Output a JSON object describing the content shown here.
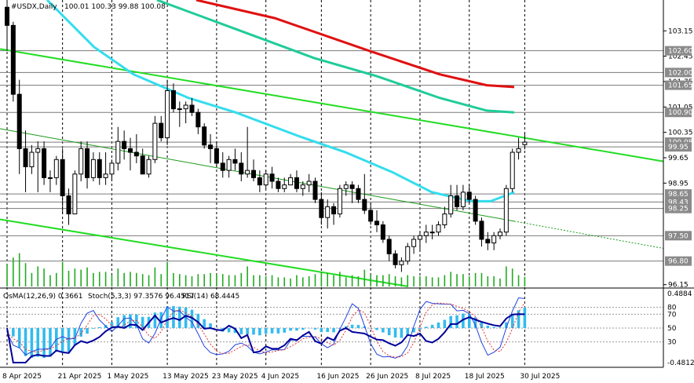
{
  "header": {
    "symbol": "#USDX,Daily",
    "ohlc": "100.01 100.33 99.88 100.08"
  },
  "subwindow": {
    "osma_label": "OsMA(12,26,9) 0.3661",
    "stoch_label": "Stoch(5,3,3) 97.3576 96.4517",
    "rsi_label": "RSI(14) 68.4445"
  },
  "chart_data": [
    {
      "type": "candlestick",
      "title": "#USDX,Daily",
      "ylim": [
        96.1,
        104.0
      ],
      "price_ticks": [
        "103.15",
        "102.45",
        "101.75",
        "101.05",
        "100.35",
        "99.65",
        "98.95",
        "96.15"
      ],
      "level_labels": [
        {
          "value": 102.6,
          "label": "102.60",
          "box": true
        },
        {
          "value": 102.0,
          "label": "102.00",
          "box": true
        },
        {
          "value": 101.65,
          "label": "101.65",
          "box": true
        },
        {
          "value": 100.9,
          "label": "100.90",
          "box": true
        },
        {
          "value": 100.08,
          "label": "100.08",
          "box": true
        },
        {
          "value": 99.95,
          "label": "99.95",
          "box": true
        },
        {
          "value": 98.65,
          "label": "98.65",
          "box": true
        },
        {
          "value": 98.43,
          "label": "98.43",
          "box": true
        },
        {
          "value": 98.25,
          "label": "98.25",
          "box": true
        },
        {
          "value": 97.5,
          "label": "97.50",
          "box": true
        },
        {
          "value": 96.8,
          "label": "96.80",
          "box": true
        }
      ],
      "date_labels": [
        "8 Apr 2025",
        "21 Apr 2025",
        "1 May 2025",
        "13 May 2025",
        "23 May 2025",
        "4 Jun 2025",
        "16 Jun 2025",
        "26 Jun 2025",
        "8 Jul 2025",
        "18 Jul 2025",
        "30 Jul 2025"
      ],
      "date_label_index": [
        0,
        9,
        17,
        26,
        34,
        42,
        51,
        59,
        67,
        75,
        84
      ],
      "candles": [
        [
          103.8,
          104.2,
          102.6,
          103.3
        ],
        [
          103.3,
          103.4,
          101.2,
          101.4
        ],
        [
          101.4,
          101.8,
          99.2,
          99.9
        ],
        [
          99.9,
          100.4,
          98.7,
          99.4
        ],
        [
          99.4,
          100.0,
          99.2,
          99.8
        ],
        [
          99.8,
          100.1,
          98.7,
          99.9
        ],
        [
          99.9,
          100.1,
          98.9,
          99.1
        ],
        [
          99.1,
          99.3,
          98.7,
          99.1
        ],
        [
          99.1,
          99.7,
          98.9,
          99.6
        ],
        [
          99.6,
          99.9,
          98.1,
          98.6
        ],
        [
          98.6,
          98.8,
          97.8,
          98.1
        ],
        [
          98.1,
          99.3,
          98.1,
          99.2
        ],
        [
          99.2,
          100.1,
          99.0,
          99.9
        ],
        [
          99.9,
          100.1,
          98.8,
          99.1
        ],
        [
          99.1,
          99.8,
          99.0,
          99.6
        ],
        [
          99.6,
          99.8,
          98.9,
          99.1
        ],
        [
          99.1,
          99.8,
          98.9,
          99.2
        ],
        [
          99.2,
          99.6,
          99.0,
          99.5
        ],
        [
          99.5,
          100.5,
          99.3,
          100.1
        ],
        [
          100.1,
          100.4,
          99.6,
          99.9
        ],
        [
          99.9,
          100.2,
          99.3,
          99.8
        ],
        [
          99.8,
          100.3,
          99.5,
          99.7
        ],
        [
          99.7,
          99.9,
          99.2,
          99.2
        ],
        [
          99.2,
          99.7,
          99.1,
          99.6
        ],
        [
          99.6,
          100.8,
          99.5,
          100.6
        ],
        [
          100.6,
          100.8,
          100.1,
          100.2
        ],
        [
          100.2,
          101.8,
          100.0,
          101.5
        ],
        [
          101.5,
          101.7,
          100.9,
          101.0
        ],
        [
          101.0,
          101.2,
          100.5,
          101.0
        ],
        [
          101.0,
          101.2,
          100.6,
          101.1
        ],
        [
          101.1,
          101.3,
          100.8,
          100.9
        ],
        [
          100.9,
          101.0,
          100.3,
          100.5
        ],
        [
          100.5,
          100.6,
          99.9,
          100.0
        ],
        [
          100.0,
          100.3,
          99.5,
          99.9
        ],
        [
          99.9,
          100.1,
          99.4,
          99.5
        ],
        [
          99.5,
          99.8,
          99.1,
          99.3
        ],
        [
          99.3,
          99.7,
          99.1,
          99.6
        ],
        [
          99.6,
          99.9,
          99.3,
          99.5
        ],
        [
          99.5,
          99.8,
          99.0,
          99.2
        ],
        [
          99.2,
          100.5,
          99.1,
          99.3
        ],
        [
          99.3,
          99.6,
          99.0,
          99.1
        ],
        [
          99.1,
          99.3,
          98.7,
          98.9
        ],
        [
          98.9,
          99.3,
          98.8,
          99.2
        ],
        [
          99.2,
          99.4,
          98.8,
          99.0
        ],
        [
          99.0,
          99.1,
          98.7,
          98.8
        ],
        [
          98.8,
          99.1,
          98.7,
          98.9
        ],
        [
          98.9,
          99.2,
          98.9,
          99.1
        ],
        [
          99.1,
          99.3,
          98.7,
          98.8
        ],
        [
          98.8,
          99.0,
          98.6,
          98.9
        ],
        [
          98.9,
          99.2,
          98.7,
          99.0
        ],
        [
          99.0,
          99.1,
          98.4,
          98.5
        ],
        [
          98.5,
          98.7,
          97.8,
          98.0
        ],
        [
          98.0,
          98.5,
          97.7,
          98.3
        ],
        [
          98.3,
          98.4,
          97.8,
          98.1
        ],
        [
          98.1,
          98.9,
          98.0,
          98.8
        ],
        [
          98.8,
          99.0,
          98.6,
          98.9
        ],
        [
          98.9,
          99.0,
          98.4,
          98.8
        ],
        [
          98.8,
          98.9,
          98.4,
          98.5
        ],
        [
          98.5,
          99.2,
          98.1,
          98.2
        ],
        [
          98.2,
          98.4,
          97.8,
          97.9
        ],
        [
          97.9,
          98.2,
          97.6,
          97.8
        ],
        [
          97.8,
          97.9,
          97.3,
          97.4
        ],
        [
          97.4,
          97.5,
          96.8,
          97.0
        ],
        [
          97.0,
          97.1,
          96.6,
          96.7
        ],
        [
          96.7,
          96.9,
          96.5,
          96.8
        ],
        [
          96.8,
          97.3,
          96.7,
          97.2
        ],
        [
          97.2,
          97.5,
          97.0,
          97.4
        ],
        [
          97.4,
          97.6,
          97.1,
          97.5
        ],
        [
          97.5,
          97.8,
          97.3,
          97.6
        ],
        [
          97.6,
          97.8,
          97.4,
          97.6
        ],
        [
          97.6,
          97.9,
          97.5,
          97.8
        ],
        [
          97.8,
          98.3,
          97.7,
          98.1
        ],
        [
          98.1,
          98.9,
          98.0,
          98.6
        ],
        [
          98.6,
          98.9,
          98.2,
          98.3
        ],
        [
          98.3,
          98.9,
          98.2,
          98.7
        ],
        [
          98.7,
          98.9,
          98.4,
          98.5
        ],
        [
          98.5,
          98.6,
          97.8,
          97.9
        ],
        [
          97.9,
          98.0,
          97.2,
          97.4
        ],
        [
          97.4,
          97.6,
          97.1,
          97.3
        ],
        [
          97.3,
          97.6,
          97.1,
          97.5
        ],
        [
          97.5,
          97.7,
          97.4,
          97.6
        ],
        [
          97.6,
          98.9,
          97.5,
          98.8
        ],
        [
          98.8,
          99.9,
          98.7,
          99.8
        ],
        [
          99.8,
          100.2,
          99.6,
          99.9
        ],
        [
          100.01,
          100.33,
          99.88,
          100.08
        ]
      ]
    }
  ]
}
